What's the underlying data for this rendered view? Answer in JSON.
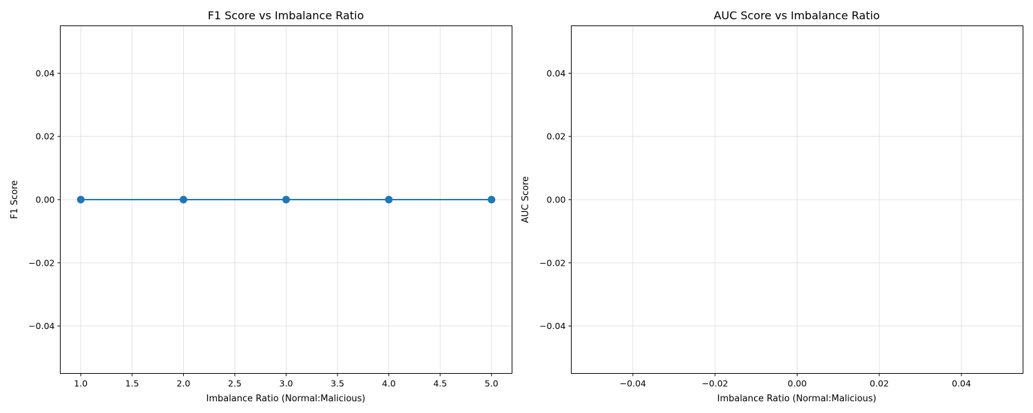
{
  "chart_data": [
    {
      "type": "line",
      "title": "F1 Score vs Imbalance Ratio",
      "xlabel": "Imbalance Ratio (Normal:Malicious)",
      "ylabel": "F1 Score",
      "xlim": [
        0.8,
        5.2
      ],
      "ylim": [
        -0.055,
        0.055
      ],
      "xticks": [
        1.0,
        1.5,
        2.0,
        2.5,
        3.0,
        3.5,
        4.0,
        4.5,
        5.0
      ],
      "xtick_labels": [
        "1.0",
        "1.5",
        "2.0",
        "2.5",
        "3.0",
        "3.5",
        "4.0",
        "4.5",
        "5.0"
      ],
      "yticks": [
        -0.04,
        -0.02,
        0.0,
        0.02,
        0.04
      ],
      "ytick_labels": [
        "−0.04",
        "−0.02",
        "0.00",
        "0.02",
        "0.04"
      ],
      "grid": true,
      "series": [
        {
          "x": [
            1,
            2,
            3,
            4,
            5
          ],
          "y": [
            0,
            0,
            0,
            0,
            0
          ],
          "color": "#1f77b4",
          "marker": "circle"
        }
      ]
    },
    {
      "type": "line",
      "title": "AUC Score vs Imbalance Ratio",
      "xlabel": "Imbalance Ratio (Normal:Malicious)",
      "ylabel": "AUC Score",
      "xlim": [
        -0.055,
        0.055
      ],
      "ylim": [
        -0.055,
        0.055
      ],
      "xticks": [
        -0.04,
        -0.02,
        0.0,
        0.02,
        0.04
      ],
      "xtick_labels": [
        "−0.04",
        "−0.02",
        "0.00",
        "0.02",
        "0.04"
      ],
      "yticks": [
        -0.04,
        -0.02,
        0.0,
        0.02,
        0.04
      ],
      "ytick_labels": [
        "−0.04",
        "−0.02",
        "0.00",
        "0.02",
        "0.04"
      ],
      "grid": true,
      "series": []
    }
  ]
}
